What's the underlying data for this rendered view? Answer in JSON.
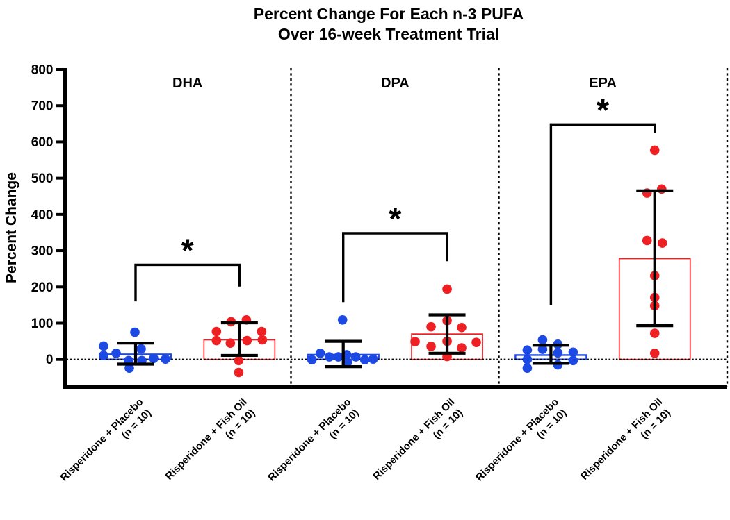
{
  "title": {
    "line1": "Percent Change For Each n-3 PUFA",
    "line2": "Over 16-week Treatment Trial"
  },
  "chart_data": {
    "type": "scatter",
    "subtype": "column-scatter with mean bars and SD error bars",
    "title": "Percent Change For Each n-3 PUFA Over 16-week Treatment Trial",
    "ylabel": "Percent Change",
    "ylim": [
      -75,
      800
    ],
    "yticks": [
      0,
      100,
      200,
      300,
      400,
      500,
      600,
      700,
      800
    ],
    "grid": false,
    "colors": {
      "blue": "#1C49E4",
      "red": "#EE2024",
      "axis": "#000000"
    },
    "panels": [
      {
        "label": "DHA",
        "groups": [
          {
            "label_line1": "Risperidone + Placebo",
            "label_line2": "(n = 10)",
            "color": "blue",
            "mean": 14,
            "err_top": 45,
            "err_bottom": -13,
            "points": [
              [
                -46,
                37
              ],
              [
                -46,
                11
              ],
              [
                -28,
                17
              ],
              [
                -10,
                -3
              ],
              [
                -9,
                -24
              ],
              [
                -1,
                75
              ],
              [
                8,
                29
              ],
              [
                9,
                -3
              ],
              [
                26,
                3
              ],
              [
                43,
                1
              ]
            ]
          },
          {
            "label_line1": "Risperidone + Fish Oil",
            "label_line2": "(n = 10)",
            "color": "red",
            "mean": 54,
            "err_top": 101,
            "err_bottom": 11,
            "points": [
              [
                -33,
                77
              ],
              [
                -33,
                52
              ],
              [
                -13,
                45
              ],
              [
                -12,
                104
              ],
              [
                -1,
                -3
              ],
              [
                -1,
                -36
              ],
              [
                10,
                109
              ],
              [
                11,
                52
              ],
              [
                32,
                77
              ],
              [
                33,
                54
              ]
            ]
          }
        ],
        "bracket": {
          "top": 261,
          "left_drop": 160,
          "right_drop": 201,
          "star": "*"
        }
      },
      {
        "label": "DPA",
        "groups": [
          {
            "label_line1": "Risperidone + Placebo",
            "label_line2": "(n = 10)",
            "color": "blue",
            "mean": 13,
            "err_top": 50,
            "err_bottom": -20,
            "points": [
              [
                -45,
                -1
              ],
              [
                -33,
                17
              ],
              [
                -20,
                7
              ],
              [
                -7,
                7
              ],
              [
                -1,
                109
              ],
              [
                5,
                13
              ],
              [
                6,
                -8
              ],
              [
                18,
                7
              ],
              [
                31,
                -1
              ],
              [
                43,
                1
              ]
            ]
          },
          {
            "label_line1": "Risperidone + Fish Oil",
            "label_line2": "(n = 10)",
            "color": "red",
            "mean": 70,
            "err_top": 123,
            "err_bottom": 17,
            "points": [
              [
                -46,
                49
              ],
              [
                -23,
                90
              ],
              [
                -23,
                36
              ],
              [
                0,
                194
              ],
              [
                0,
                107
              ],
              [
                0,
                50
              ],
              [
                0,
                8
              ],
              [
                21,
                88
              ],
              [
                21,
                32
              ],
              [
                42,
                47
              ]
            ]
          }
        ],
        "bracket": {
          "top": 348,
          "left_drop": 158,
          "right_drop": 271,
          "star": "*"
        }
      },
      {
        "label": "EPA",
        "groups": [
          {
            "label_line1": "Risperidone + Placebo",
            "label_line2": "(n = 10)",
            "color": "blue",
            "mean": 12,
            "err_top": 39,
            "err_bottom": -11,
            "points": [
              [
                -34,
                26
              ],
              [
                -34,
                0
              ],
              [
                -34,
                -24
              ],
              [
                -12,
                54
              ],
              [
                -12,
                28
              ],
              [
                10,
                42
              ],
              [
                10,
                18
              ],
              [
                10,
                -15
              ],
              [
                32,
                20
              ],
              [
                32,
                -3
              ]
            ]
          },
          {
            "label_line1": "Risperidone + Fish Oil",
            "label_line2": "(n = 10)",
            "color": "red",
            "mean": 278,
            "err_top": 465,
            "err_bottom": 93,
            "points": [
              [
                0,
                577
              ],
              [
                10,
                470
              ],
              [
                -11,
                459
              ],
              [
                -11,
                328
              ],
              [
                11,
                321
              ],
              [
                0,
                231
              ],
              [
                0,
                171
              ],
              [
                0,
                148
              ],
              [
                0,
                72
              ],
              [
                0,
                17
              ]
            ]
          }
        ],
        "bracket": {
          "top": 648,
          "left_drop": 149,
          "right_drop": 624,
          "star": "*"
        }
      }
    ]
  }
}
